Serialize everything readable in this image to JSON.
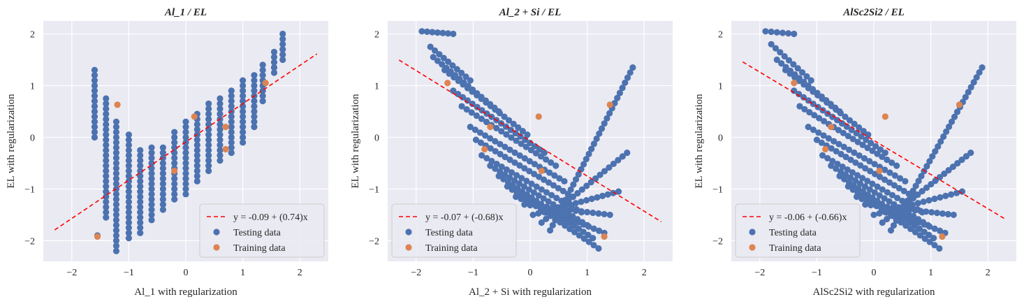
{
  "figure": {
    "panels": [
      {
        "title": "Al_1 / EL",
        "xlabel": "Al_1 with regularization",
        "ylabel": "EL with regularization"
      },
      {
        "title": "Al_2 + Si / EL",
        "xlabel": "Al_2 + Si with regularization",
        "ylabel": "EL with regularization"
      },
      {
        "title": "AlSc2Si2 / EL",
        "xlabel": "AlSc2Si2 with regularization",
        "ylabel": "EL with regularization"
      }
    ]
  },
  "colors": {
    "testing": "#4c72b0",
    "training": "#dd8452",
    "fit": "#ff0000",
    "plot_bg": "#eaeaf2",
    "grid": "#ffffff"
  },
  "chart_data": [
    {
      "type": "scatter",
      "title": "Al_1 / EL",
      "xlabel": "Al_1 with regularization",
      "ylabel": "EL with regularization",
      "xlim": [
        -2.5,
        2.5
      ],
      "ylim": [
        -2.4,
        2.25
      ],
      "xticks": [
        "-2",
        "-1",
        "0",
        "1",
        "2"
      ],
      "yticks": [
        "-2",
        "-1",
        "0",
        "1",
        "2"
      ],
      "grid": true,
      "legend_position": "lower-right",
      "fit": {
        "label": "y = -0.09 + (0.74)x",
        "intercept": -0.09,
        "slope": 0.74,
        "x_range": [
          -2.3,
          2.3
        ]
      },
      "testing_label": "Testing data",
      "training_label": "Training data",
      "testing_columns": [
        [
          -1.6,
          0.0,
          1.35
        ],
        [
          -1.55,
          -1.9,
          -1.85
        ],
        [
          -1.4,
          -1.55,
          0.8
        ],
        [
          -1.22,
          -2.2,
          0.3
        ],
        [
          -1.0,
          -1.95,
          0.05
        ],
        [
          -0.8,
          -1.85,
          -0.25
        ],
        [
          -0.6,
          -1.6,
          -0.2
        ],
        [
          -0.4,
          -1.4,
          -0.15
        ],
        [
          -0.2,
          -1.2,
          0.1
        ],
        [
          0.0,
          -1.1,
          0.3
        ],
        [
          0.2,
          -0.85,
          0.45
        ],
        [
          0.4,
          -0.65,
          0.65
        ],
        [
          0.6,
          -0.45,
          0.8
        ],
        [
          0.8,
          -0.3,
          0.9
        ],
        [
          1.0,
          -0.1,
          1.15
        ],
        [
          1.2,
          0.2,
          1.25
        ],
        [
          1.35,
          0.7,
          1.4
        ],
        [
          1.55,
          1.25,
          1.65
        ],
        [
          1.7,
          1.5,
          2.05
        ]
      ],
      "training": [
        [
          -1.55,
          -1.92
        ],
        [
          -1.2,
          0.63
        ],
        [
          -0.2,
          -0.65
        ],
        [
          0.15,
          0.4
        ],
        [
          0.7,
          0.2
        ],
        [
          0.7,
          -0.23
        ],
        [
          1.4,
          1.05
        ]
      ]
    },
    {
      "type": "scatter",
      "title": "Al_2 + Si / EL",
      "xlabel": "Al_2 + Si with regularization",
      "ylabel": "EL with regularization",
      "xlim": [
        -2.5,
        2.5
      ],
      "ylim": [
        -2.4,
        2.25
      ],
      "xticks": [
        "-2",
        "-1",
        "0",
        "1",
        "2"
      ],
      "yticks": [
        "-2",
        "-1",
        "0",
        "1",
        "2"
      ],
      "grid": true,
      "legend_position": "lower-left",
      "fit": {
        "label": "y = -0.07 + (-0.68)x",
        "intercept": -0.07,
        "slope": -0.68,
        "x_range": [
          -2.3,
          2.3
        ]
      },
      "testing_label": "Testing data",
      "training_label": "Training data",
      "arcs": [
        [
          -1.9,
          2.05,
          -1.35,
          2.0
        ],
        [
          -1.75,
          1.75,
          -1.05,
          1.1
        ],
        [
          -1.7,
          1.55,
          -0.55,
          0.5
        ],
        [
          -1.5,
          1.3,
          -0.05,
          0.05
        ],
        [
          -1.35,
          0.9,
          0.25,
          -0.3
        ],
        [
          -1.2,
          0.6,
          0.45,
          -0.55
        ],
        [
          -1.05,
          0.2,
          0.6,
          -0.85
        ],
        [
          -0.95,
          -0.05,
          0.75,
          -1.15
        ],
        [
          -0.85,
          -0.35,
          0.9,
          -1.45
        ],
        [
          -0.7,
          -0.55,
          1.0,
          -1.7
        ],
        [
          -0.55,
          -0.75,
          1.1,
          -1.95
        ],
        [
          -0.4,
          -0.95,
          1.2,
          -2.15
        ],
        [
          -0.25,
          -1.15,
          1.3,
          -1.85
        ],
        [
          -0.1,
          -1.3,
          1.4,
          -1.5
        ],
        [
          0.05,
          -1.5,
          1.55,
          -1.05
        ],
        [
          0.2,
          -1.65,
          1.7,
          -0.3
        ],
        [
          0.35,
          -1.8,
          1.8,
          1.35
        ]
      ],
      "training": [
        [
          -1.45,
          1.05
        ],
        [
          -0.8,
          -0.23
        ],
        [
          -0.7,
          0.2
        ],
        [
          0.15,
          0.4
        ],
        [
          0.2,
          -0.65
        ],
        [
          1.3,
          -1.92
        ],
        [
          1.4,
          0.63
        ]
      ]
    },
    {
      "type": "scatter",
      "title": "AlSc2Si2 / EL",
      "xlabel": "AlSc2Si2 with regularization",
      "ylabel": "EL with regularization",
      "xlim": [
        -2.5,
        2.5
      ],
      "ylim": [
        -2.4,
        2.25
      ],
      "xticks": [
        "-2",
        "-1",
        "0",
        "1",
        "2"
      ],
      "yticks": [
        "-2",
        "-1",
        "0",
        "1",
        "2"
      ],
      "grid": true,
      "legend_position": "lower-left",
      "fit": {
        "label": "y = -0.06 + (-0.66)x",
        "intercept": -0.06,
        "slope": -0.66,
        "x_range": [
          -2.3,
          2.3
        ]
      },
      "testing_label": "Testing data",
      "training_label": "Training data",
      "arcs": [
        [
          -1.9,
          2.05,
          -1.4,
          2.0
        ],
        [
          -1.8,
          1.8,
          -1.1,
          1.1
        ],
        [
          -1.7,
          1.5,
          -0.6,
          0.5
        ],
        [
          -1.55,
          1.3,
          -0.1,
          0.05
        ],
        [
          -1.4,
          0.9,
          0.2,
          -0.3
        ],
        [
          -1.3,
          0.6,
          0.4,
          -0.55
        ],
        [
          -1.15,
          0.2,
          0.55,
          -0.85
        ],
        [
          -1.0,
          -0.05,
          0.7,
          -1.15
        ],
        [
          -0.9,
          -0.35,
          0.85,
          -1.45
        ],
        [
          -0.75,
          -0.55,
          0.95,
          -1.7
        ],
        [
          -0.6,
          -0.75,
          1.05,
          -1.95
        ],
        [
          -0.45,
          -0.95,
          1.15,
          -2.15
        ],
        [
          -0.3,
          -1.15,
          1.25,
          -1.85
        ],
        [
          -0.15,
          -1.3,
          1.4,
          -1.5
        ],
        [
          0.0,
          -1.5,
          1.55,
          -1.05
        ],
        [
          0.15,
          -1.65,
          1.7,
          -0.3
        ],
        [
          0.3,
          -1.8,
          1.9,
          1.35
        ]
      ],
      "training": [
        [
          -1.4,
          1.05
        ],
        [
          -0.85,
          -0.23
        ],
        [
          -0.75,
          0.2
        ],
        [
          0.1,
          -0.65
        ],
        [
          0.2,
          0.4
        ],
        [
          1.2,
          -1.92
        ],
        [
          1.5,
          0.63
        ]
      ]
    }
  ]
}
